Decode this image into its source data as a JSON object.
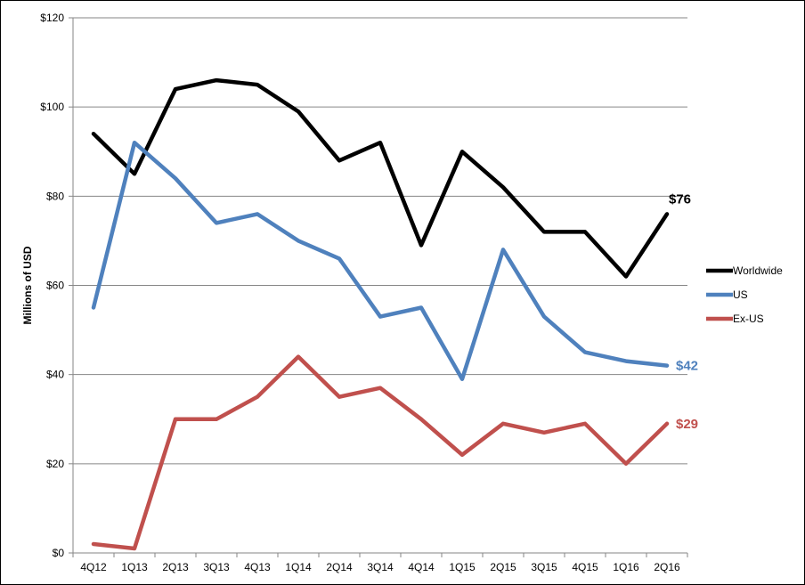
{
  "chart_data": {
    "type": "line",
    "title": "",
    "xlabel": "",
    "ylabel": "Millions of USD",
    "ylim": [
      0,
      120
    ],
    "y_ticks": [
      0,
      20,
      40,
      60,
      80,
      100,
      120
    ],
    "y_tick_labels": [
      "$0",
      "$20",
      "$40",
      "$60",
      "$80",
      "$100",
      "$120"
    ],
    "grid": true,
    "legend_position": "right",
    "categories": [
      "4Q12",
      "1Q13",
      "2Q13",
      "3Q13",
      "4Q13",
      "1Q14",
      "2Q14",
      "3Q14",
      "4Q14",
      "1Q15",
      "2Q15",
      "3Q15",
      "4Q15",
      "1Q16",
      "2Q16"
    ],
    "series": [
      {
        "name": "Worldwide",
        "color": "#000000",
        "values": [
          94,
          85,
          104,
          106,
          105,
          99,
          88,
          92,
          69,
          90,
          82,
          72,
          72,
          62,
          76
        ],
        "end_label": "$76"
      },
      {
        "name": "US",
        "color": "#4f81bd",
        "values": [
          55,
          92,
          84,
          74,
          76,
          70,
          66,
          53,
          55,
          39,
          68,
          53,
          45,
          43,
          42
        ],
        "end_label": "$42"
      },
      {
        "name": "Ex-US",
        "color": "#c0504d",
        "values": [
          2,
          1,
          30,
          30,
          35,
          44,
          35,
          37,
          30,
          22,
          29,
          27,
          29,
          20,
          29
        ],
        "end_label": "$29"
      }
    ]
  }
}
